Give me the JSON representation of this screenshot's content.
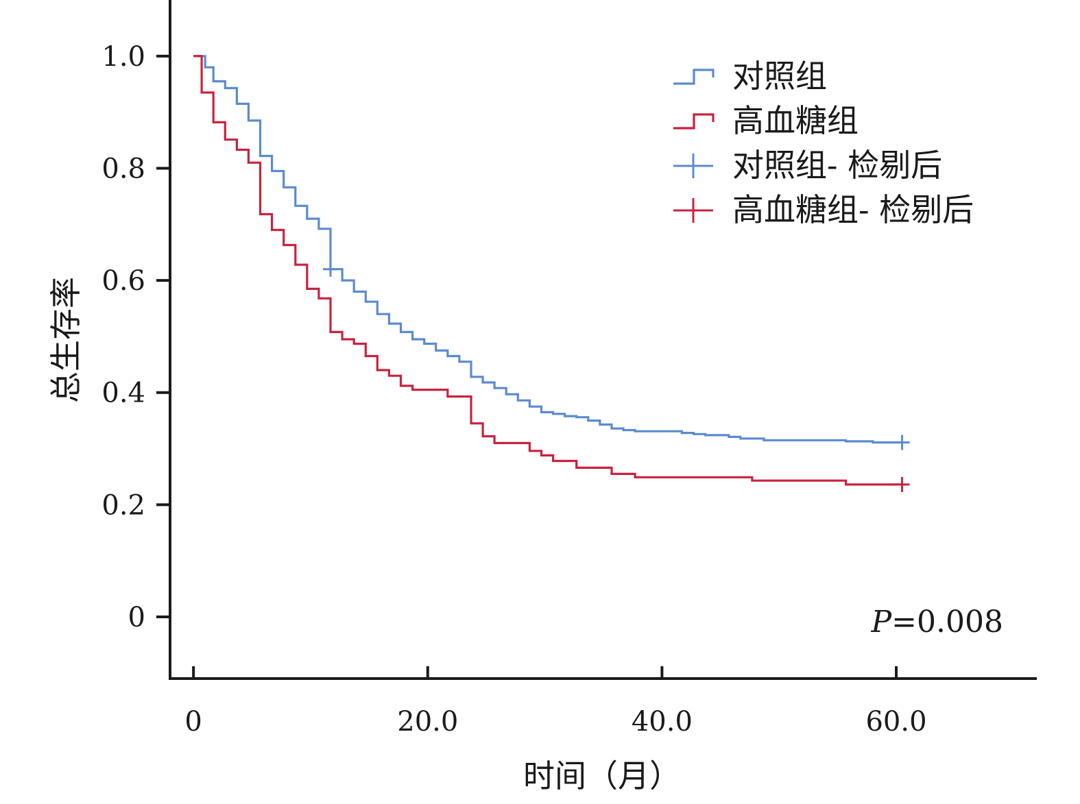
{
  "chart_data": {
    "type": "line",
    "subtype": "kaplan-meier",
    "xlabel": "时间（月）",
    "ylabel": "总生存率",
    "xlim": [
      -2,
      72
    ],
    "ylim": [
      -0.11,
      1.1
    ],
    "xticks": [
      0,
      20,
      40,
      60
    ],
    "xtick_labels": [
      "0",
      "20.0",
      "40.0",
      "60.0"
    ],
    "yticks": [
      0,
      0.2,
      0.4,
      0.6,
      0.8,
      1.0
    ],
    "ytick_labels": [
      "0",
      "0.2",
      "0.4",
      "0.6",
      "0.8",
      "1.0"
    ],
    "grid": false,
    "legend_position": "top-right",
    "annotation": {
      "prefix": "P",
      "text": "=0.008"
    },
    "series": [
      {
        "name": "对照组",
        "color": "#5b8bd0",
        "steps": [
          [
            0,
            1.0
          ],
          [
            1,
            0.98
          ],
          [
            1.7,
            0.955
          ],
          [
            2.7,
            0.943
          ],
          [
            3.7,
            0.915
          ],
          [
            4.7,
            0.885
          ],
          [
            5.7,
            0.822
          ],
          [
            6.7,
            0.795
          ],
          [
            7.7,
            0.766
          ],
          [
            8.7,
            0.733
          ],
          [
            9.7,
            0.71
          ],
          [
            10.7,
            0.692
          ],
          [
            11.7,
            0.62
          ],
          [
            12.7,
            0.6
          ],
          [
            13.7,
            0.58
          ],
          [
            14.7,
            0.562
          ],
          [
            15.7,
            0.54
          ],
          [
            16.7,
            0.523
          ],
          [
            17.7,
            0.508
          ],
          [
            18.7,
            0.495
          ],
          [
            19.7,
            0.487
          ],
          [
            20.7,
            0.475
          ],
          [
            21.7,
            0.465
          ],
          [
            22.7,
            0.455
          ],
          [
            23.7,
            0.428
          ],
          [
            24.7,
            0.418
          ],
          [
            25.7,
            0.408
          ],
          [
            26.7,
            0.397
          ],
          [
            27.7,
            0.386
          ],
          [
            28.7,
            0.375
          ],
          [
            29.7,
            0.365
          ],
          [
            30.7,
            0.362
          ],
          [
            31.7,
            0.358
          ],
          [
            32.7,
            0.356
          ],
          [
            33.7,
            0.35
          ],
          [
            34.7,
            0.343
          ],
          [
            35.7,
            0.336
          ],
          [
            36.7,
            0.333
          ],
          [
            37.7,
            0.331
          ],
          [
            41.7,
            0.328
          ],
          [
            42.7,
            0.326
          ],
          [
            43.7,
            0.324
          ],
          [
            45.7,
            0.321
          ],
          [
            46.7,
            0.318
          ],
          [
            48.7,
            0.315
          ],
          [
            55.7,
            0.313
          ],
          [
            58,
            0.311
          ],
          [
            60.5,
            0.311
          ]
        ]
      },
      {
        "name": "高血糖组",
        "color": "#c8233f",
        "steps": [
          [
            0,
            1.0
          ],
          [
            0.7,
            0.935
          ],
          [
            1.7,
            0.882
          ],
          [
            2.7,
            0.851
          ],
          [
            3.7,
            0.833
          ],
          [
            4.7,
            0.81
          ],
          [
            5.7,
            0.718
          ],
          [
            6.7,
            0.69
          ],
          [
            7.7,
            0.663
          ],
          [
            8.7,
            0.628
          ],
          [
            9.7,
            0.585
          ],
          [
            10.7,
            0.568
          ],
          [
            11.7,
            0.508
          ],
          [
            12.7,
            0.495
          ],
          [
            13.7,
            0.487
          ],
          [
            14.7,
            0.465
          ],
          [
            15.7,
            0.44
          ],
          [
            16.7,
            0.43
          ],
          [
            17.7,
            0.412
          ],
          [
            18.7,
            0.405
          ],
          [
            21.7,
            0.393
          ],
          [
            23.7,
            0.345
          ],
          [
            24.7,
            0.322
          ],
          [
            25.7,
            0.31
          ],
          [
            28.7,
            0.296
          ],
          [
            29.7,
            0.288
          ],
          [
            30.7,
            0.278
          ],
          [
            32.7,
            0.266
          ],
          [
            35.7,
            0.255
          ],
          [
            37.7,
            0.249
          ],
          [
            47.7,
            0.243
          ],
          [
            55.7,
            0.236
          ],
          [
            60.5,
            0.236
          ]
        ]
      }
    ],
    "censor_marks": [
      {
        "series": 0,
        "x": 11.7,
        "y": 0.62
      },
      {
        "series": 0,
        "x": 60.5,
        "y": 0.311
      },
      {
        "series": 1,
        "x": 60.5,
        "y": 0.236
      }
    ],
    "legend": [
      {
        "label": "对照组",
        "marker": "step",
        "color": "#5b8bd0"
      },
      {
        "label": "高血糖组",
        "marker": "step",
        "color": "#c8233f"
      },
      {
        "label": "对照组- 检剔后",
        "marker": "cross",
        "color": "#5b8bd0"
      },
      {
        "label": "高血糖组- 检剔后",
        "marker": "cross",
        "color": "#c8233f"
      }
    ]
  }
}
